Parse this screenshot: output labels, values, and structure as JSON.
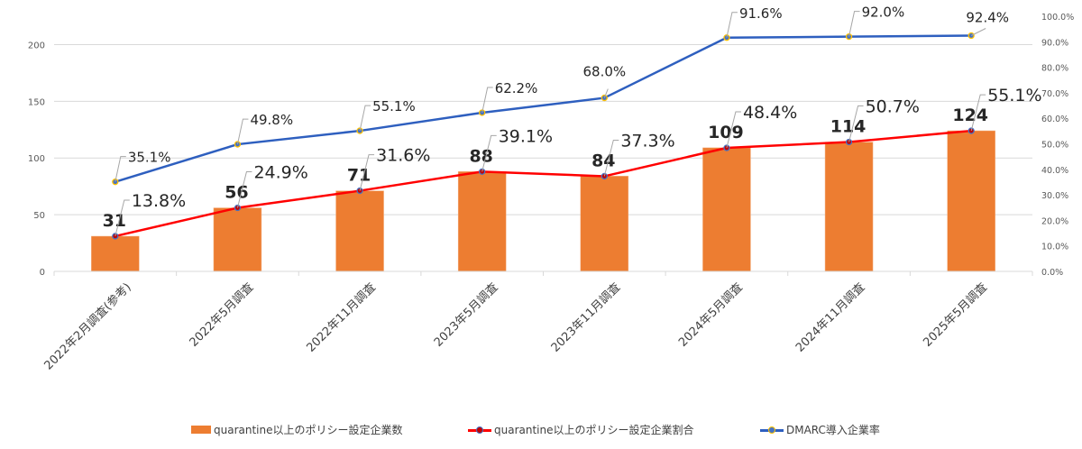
{
  "chart_data": {
    "type": "bar",
    "title": "",
    "xlabel": "",
    "ylabel": "",
    "categories": [
      "2022年2月調査(参考)",
      "2022年5月調査",
      "2022年11月調査",
      "2023年5月調査",
      "2023年11月調査",
      "2024年5月調査",
      "2024年11月調査",
      "2025年5月調査"
    ],
    "series": [
      {
        "name": "quarantine以上のポリシー設定企業数",
        "type": "bar",
        "axis": "left",
        "color": "#ED7D31",
        "values": [
          31,
          56,
          71,
          88,
          84,
          109,
          114,
          124
        ],
        "labels": [
          "31",
          "56",
          "71",
          "88",
          "84",
          "109",
          "114",
          "124"
        ]
      },
      {
        "name": "quarantine以上のポリシー設定企業割合",
        "type": "line",
        "axis": "right",
        "color": "#FF0000",
        "marker_color": "#4472C4",
        "values": [
          13.8,
          24.9,
          31.6,
          39.1,
          37.3,
          48.4,
          50.7,
          55.1
        ],
        "labels": [
          "13.8%",
          "24.9%",
          "31.6%",
          "39.1%",
          "37.3%",
          "48.4%",
          "50.7%",
          "55.1%"
        ]
      },
      {
        "name": "DMARC導入企業率",
        "type": "line",
        "axis": "right",
        "color": "#2E5FBF",
        "marker_color": "#FFC000",
        "values": [
          35.1,
          49.8,
          55.1,
          62.2,
          68.0,
          91.6,
          92.0,
          92.4
        ],
        "labels": [
          "35.1%",
          "49.8%",
          "55.1%",
          "62.2%",
          "68.0%",
          "91.6%",
          "92.0%",
          "92.4%"
        ]
      }
    ],
    "y_left": {
      "ylim": [
        0,
        225
      ],
      "ticks": [
        0,
        50,
        100,
        150,
        200
      ],
      "tick_labels": [
        "0",
        "50",
        "100",
        "150",
        "200"
      ]
    },
    "y_right": {
      "ylim": [
        0,
        100
      ],
      "ticks": [
        0,
        10,
        20,
        30,
        40,
        50,
        60,
        70,
        80,
        90,
        100
      ],
      "tick_labels": [
        "0.0%",
        "10.0%",
        "20.0%",
        "30.0%",
        "40.0%",
        "50.0%",
        "60.0%",
        "70.0%",
        "80.0%",
        "90.0%",
        "100.0%"
      ]
    },
    "grid": true,
    "legend_position": "bottom"
  },
  "legend": {
    "items": [
      {
        "label": "quarantine以上のポリシー設定企業数"
      },
      {
        "label": "quarantine以上のポリシー設定企業割合"
      },
      {
        "label": "DMARC導入企業率"
      }
    ]
  }
}
